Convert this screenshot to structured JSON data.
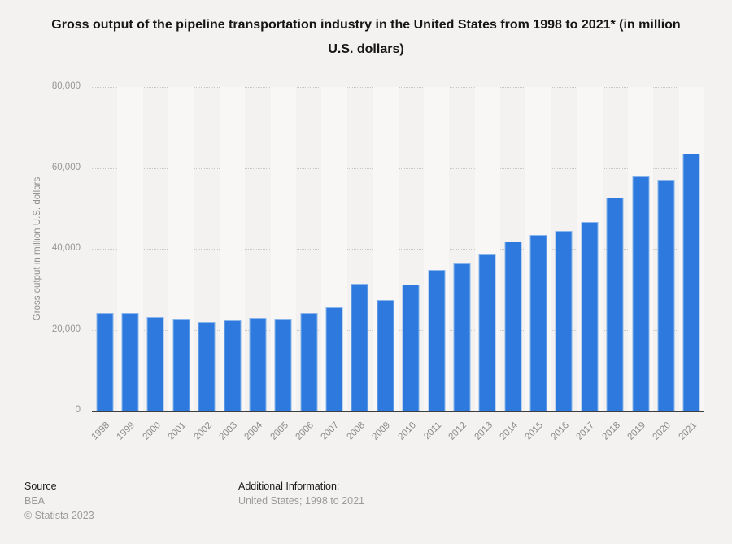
{
  "title": {
    "text": "Gross output of the pipeline transportation industry in the United States from 1998 to 2021* (in million U.S. dollars)"
  },
  "chart_data": {
    "type": "bar",
    "title": "Gross output of the pipeline transportation industry in the United States from 1998 to 2021* (in million U.S. dollars)",
    "xlabel": "",
    "ylabel": "Gross output in million U.S. dollars",
    "ylim": [
      0,
      80000
    ],
    "yticks": [
      0,
      20000,
      40000,
      60000,
      80000
    ],
    "grid": "horizontal-dotted",
    "legend": "none",
    "bar_color": "#2e79dd",
    "bar_border_color": "#8ab5ec",
    "categories": [
      "1998",
      "1999",
      "2000",
      "2001",
      "2002",
      "2003",
      "2004",
      "2005",
      "2006",
      "2007",
      "2008",
      "2009",
      "2010",
      "2011",
      "2012",
      "2013",
      "2014",
      "2015",
      "2016",
      "2017",
      "2018",
      "2019",
      "2020",
      "2021"
    ],
    "values": [
      24100,
      24200,
      23200,
      22700,
      22000,
      22300,
      22900,
      22700,
      24100,
      25600,
      31300,
      27300,
      31200,
      34800,
      36400,
      38700,
      41800,
      43400,
      44400,
      46600,
      52700,
      57900,
      57000,
      63600
    ]
  },
  "footer": {
    "source_label": "Source",
    "source_value": "BEA",
    "copyright": "© Statista 2023",
    "additional_label": "Additional Information:",
    "additional_value": "United States; 1998 to 2021"
  }
}
